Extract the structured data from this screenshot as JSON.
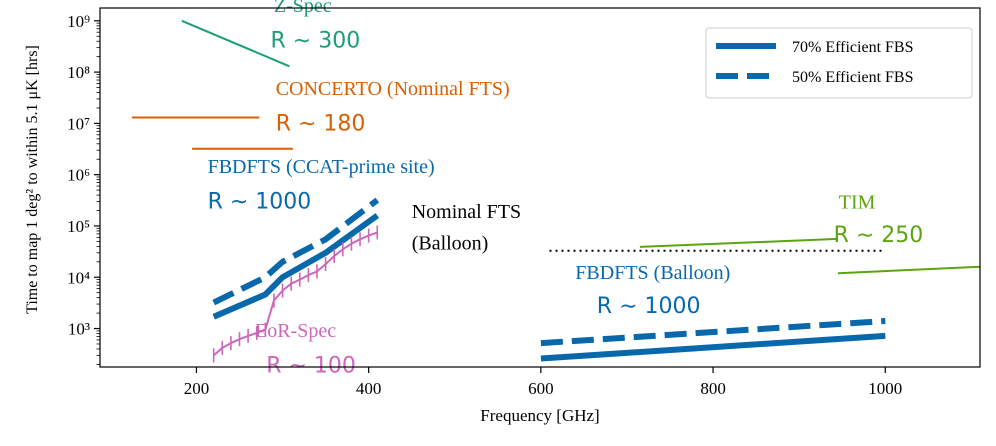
{
  "chart_data": {
    "type": "line",
    "title": "",
    "xlabel": "Frequency [GHz]",
    "ylabel": "Time to map 1 deg² to within 5.1 μK [hrs]",
    "xlim": [
      88,
      1110
    ],
    "ylim_log10": [
      2.25,
      9.25
    ],
    "yscale": "log",
    "x_ticks": [
      200,
      400,
      600,
      800,
      1000
    ],
    "x_tick_labels": [
      "200",
      "400",
      "600",
      "800",
      "1000"
    ],
    "y_ticks_log10": [
      3,
      4,
      5,
      6,
      7,
      8,
      9
    ],
    "y_tick_labels": [
      "10³",
      "10⁴",
      "10⁵",
      "10⁶",
      "10⁷",
      "10⁸",
      "10⁹"
    ],
    "legend_position": "top-right",
    "legend": [
      {
        "label": "70% Efficient FBS",
        "color": "#0868ac",
        "style": "solid"
      },
      {
        "label": "50% Efficient FBS",
        "color": "#0868ac",
        "style": "dashed"
      }
    ],
    "colors": {
      "fbs": "#0868ac",
      "zspec": "#1b9e77",
      "concerto": "#d95f02",
      "eor": "#cc66bb",
      "tim": "#5aa50f",
      "nominal": "#000000"
    },
    "series": [
      {
        "color_key": "zspec",
        "style": "solid",
        "width": 2,
        "x": [
          183,
          308
        ],
        "y": [
          1000000000.0,
          130000000.0
        ]
      },
      {
        "color_key": "concerto",
        "style": "solid",
        "width": 2,
        "x": [
          125,
          273
        ],
        "y": [
          13000000.0,
          13000000.0
        ]
      },
      {
        "color_key": "concerto",
        "style": "solid",
        "width": 2,
        "x": [
          195,
          312
        ],
        "y": [
          3200000.0,
          3200000.0
        ]
      },
      {
        "color_key": "fbs",
        "style": "solid",
        "width": 6,
        "x": [
          220,
          280,
          300,
          350,
          410
        ],
        "y": [
          1700.0,
          4600.0,
          10000.0,
          30000.0,
          160000.0
        ]
      },
      {
        "color_key": "fbs",
        "style": "dashed",
        "width": 6,
        "x": [
          220,
          280,
          300,
          350,
          410
        ],
        "y": [
          3200.0,
          10000.0,
          20000.0,
          55000.0,
          320000.0
        ]
      },
      {
        "color_key": "eor",
        "style": "solid",
        "width": 2,
        "markers": "vline",
        "x": [
          220,
          230,
          240,
          250,
          260,
          270,
          280,
          290,
          300,
          310,
          320,
          330,
          340,
          350,
          360,
          370,
          380,
          390,
          400,
          410
        ],
        "y": [
          300,
          420,
          520,
          620,
          720,
          820,
          950,
          3500,
          5500,
          7500,
          9000,
          11000,
          13000,
          18000,
          26000,
          35000,
          45000,
          55000,
          65000,
          75000
        ]
      },
      {
        "color_key": "nominal",
        "style": "dotted",
        "width": 2,
        "x": [
          610,
          1000
        ],
        "y": [
          33000.0,
          33000.0
        ]
      },
      {
        "color_key": "fbs",
        "style": "solid",
        "width": 6,
        "x": [
          600,
          1000
        ],
        "y": [
          260,
          720
        ]
      },
      {
        "color_key": "fbs",
        "style": "dashed",
        "width": 6,
        "x": [
          600,
          1000
        ],
        "y": [
          520,
          1400
        ]
      },
      {
        "color_key": "tim",
        "style": "solid",
        "width": 2,
        "x": [
          715,
          945
        ],
        "y": [
          39000.0,
          56000.0
        ]
      },
      {
        "color_key": "tim",
        "style": "solid",
        "width": 2,
        "x": [
          945,
          1110
        ],
        "y": [
          12000.0,
          16000.0
        ]
      }
    ],
    "annotations": [
      {
        "text": "Z-Spec",
        "x": 290,
        "y": 1500000000.0,
        "color_key": "zspec",
        "font": "serif"
      },
      {
        "text": "R ∼ 300",
        "x": 286,
        "y": 300000000.0,
        "color_key": "zspec",
        "font": "sans"
      },
      {
        "text": "CONCERTO (Nominal FTS)",
        "x": 292,
        "y": 36000000.0,
        "color_key": "concerto",
        "font": "serif"
      },
      {
        "text": "R ∼ 180",
        "x": 292,
        "y": 7200000.0,
        "color_key": "concerto",
        "font": "sans"
      },
      {
        "text": "FBDFTS (CCAT-prime site)",
        "x": 213,
        "y": 1080000.0,
        "color_key": "fbs",
        "font": "serif"
      },
      {
        "text": "R ∼ 1000",
        "x": 213,
        "y": 220000.0,
        "color_key": "fbs",
        "font": "sans"
      },
      {
        "text": "Nominal FTS",
        "x": 450,
        "y": 143000.0,
        "color_key": "nominal",
        "font": "serif"
      },
      {
        "text": "(Balloon)",
        "x": 450,
        "y": 34500.0,
        "color_key": "nominal",
        "font": "serif"
      },
      {
        "text": "TIM",
        "x": 946,
        "y": 220000.0,
        "color_key": "tim",
        "font": "serif"
      },
      {
        "text": "R ∼ 250",
        "x": 940,
        "y": 49000.0,
        "color_key": "tim",
        "font": "sans"
      },
      {
        "text": "FBDFTS (Balloon)",
        "x": 640,
        "y": 9200.0,
        "color_key": "fbs",
        "font": "serif"
      },
      {
        "text": "R ∼ 1000",
        "x": 665,
        "y": 2000.0,
        "color_key": "fbs",
        "font": "sans"
      },
      {
        "text": "EoR-Spec",
        "x": 268,
        "y": 680,
        "color_key": "eor",
        "font": "serif"
      },
      {
        "text": "R ∼ 100",
        "x": 281,
        "y": 140,
        "color_key": "eor",
        "font": "sans"
      }
    ]
  }
}
